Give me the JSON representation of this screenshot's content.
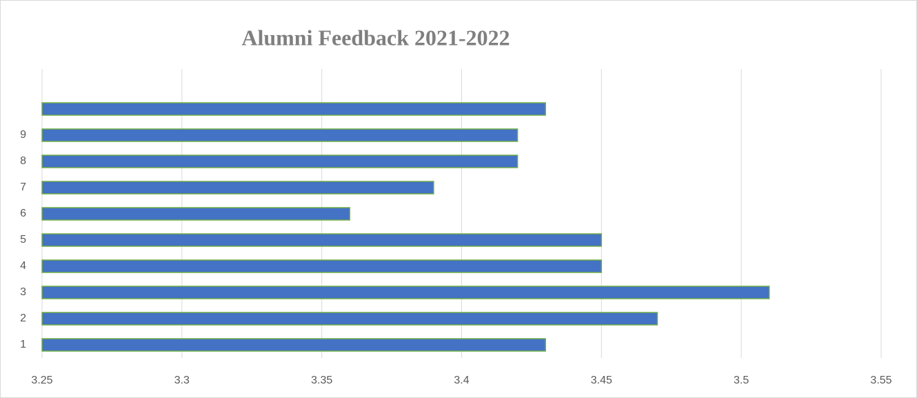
{
  "chart_data": {
    "type": "barh",
    "title": "Alumni Feedback 2021-2022",
    "categories": [
      "1",
      "2",
      "3",
      "4",
      "5",
      "6",
      "7",
      "8",
      "9",
      null
    ],
    "values": [
      3.43,
      3.47,
      3.51,
      3.45,
      3.45,
      3.36,
      3.39,
      3.42,
      3.42,
      3.43
    ],
    "color": "#4472c4",
    "edge_color": "#70ad47",
    "xlim": [
      3.25,
      3.55
    ],
    "xticks": [
      3.25,
      3.3,
      3.35,
      3.4,
      3.45,
      3.5,
      3.55
    ],
    "grid": true
  }
}
